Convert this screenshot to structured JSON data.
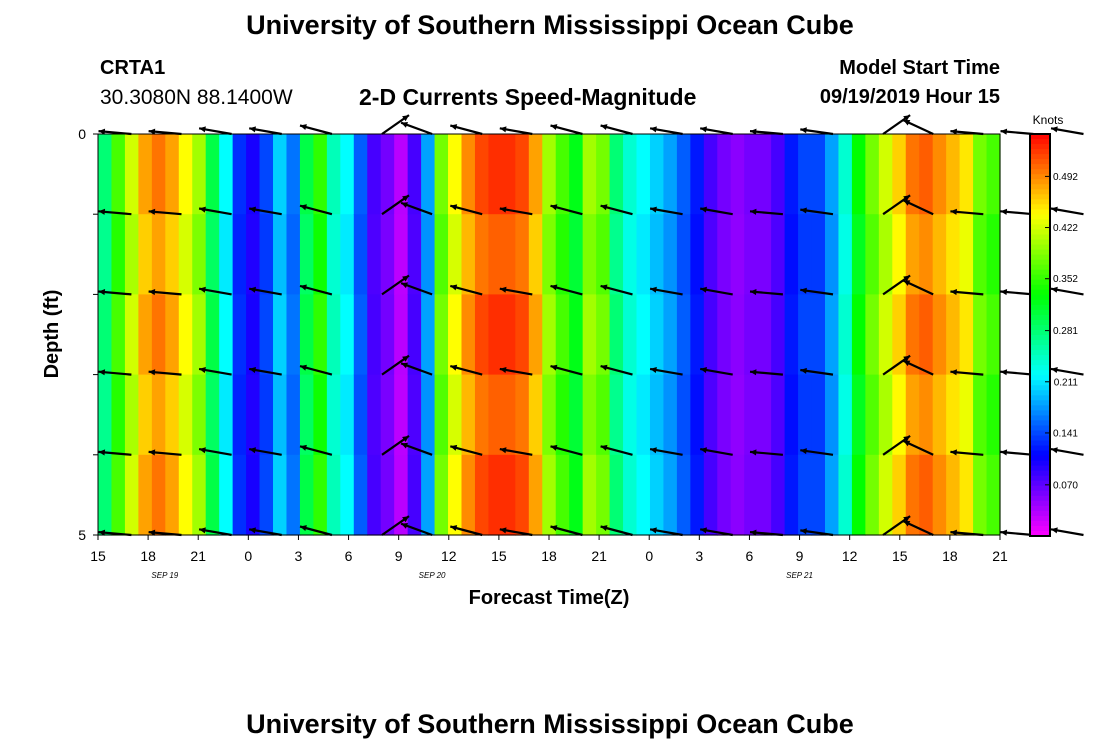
{
  "header": {
    "title": "University of Southern Mississippi Ocean Cube",
    "station": "CRTA1",
    "coords": "30.3080N 88.1400W",
    "chart_title": "2-D Currents Speed-Magnitude",
    "start_label": "Model Start Time",
    "start_value": "09/19/2019 Hour 15"
  },
  "footer": {
    "title": "University of Southern Mississippi Ocean Cube"
  },
  "chart_data": {
    "type": "heatmap",
    "title": "2-D Currents Speed-Magnitude",
    "xlabel": "Forecast Time(Z)",
    "ylabel": "Depth (ft)",
    "x_tick_labels": [
      "15",
      "18",
      "21",
      "0",
      "3",
      "6",
      "9",
      "12",
      "15",
      "18",
      "21",
      "0",
      "3",
      "6",
      "9",
      "12",
      "15",
      "18",
      "21"
    ],
    "date_labels": [
      {
        "label": "SEP 19",
        "hour_index": 4
      },
      {
        "label": "SEP 20",
        "hour_index": 20
      },
      {
        "label": "SEP 21",
        "hour_index": 42
      }
    ],
    "y_tick_labels": [
      "0",
      "5"
    ],
    "ylim": [
      0,
      5
    ],
    "x_start": "2019-09-19 15Z",
    "x_end": "2019-09-21 21Z",
    "colorbar": {
      "unit": "Knots",
      "range": [
        0.0,
        0.55
      ],
      "ticks": [
        "0.492",
        "0.422",
        "0.352",
        "0.281",
        "0.211",
        "0.141",
        "0.070"
      ]
    },
    "speed_knots_by_hour": [
      0.28,
      0.36,
      0.42,
      0.48,
      0.5,
      0.48,
      0.44,
      0.4,
      0.3,
      0.22,
      0.13,
      0.1,
      0.14,
      0.2,
      0.16,
      0.3,
      0.35,
      0.25,
      0.22,
      0.15,
      0.08,
      0.06,
      0.03,
      0.08,
      0.18,
      0.38,
      0.44,
      0.49,
      0.52,
      0.53,
      0.53,
      0.52,
      0.48,
      0.4,
      0.36,
      0.32,
      0.4,
      0.38,
      0.28,
      0.24,
      0.22,
      0.2,
      0.18,
      0.15,
      0.12,
      0.08,
      0.06,
      0.05,
      0.06,
      0.06,
      0.08,
      0.12,
      0.14,
      0.14,
      0.18,
      0.24,
      0.33,
      0.38,
      0.42,
      0.46,
      0.5,
      0.51,
      0.49,
      0.47,
      0.45,
      0.38,
      0.36
    ],
    "vector_times_hours": [
      2,
      5,
      8,
      11,
      14,
      17,
      20,
      23,
      26,
      29,
      32,
      35,
      38,
      41,
      44,
      47,
      50,
      53,
      56,
      59,
      62,
      65
    ],
    "vector_depths_ft": [
      0,
      1,
      2,
      3,
      4,
      5
    ],
    "vector_direction_deg": [
      275,
      275,
      280,
      280,
      285,
      55,
      290,
      285,
      280,
      285,
      285,
      280,
      280,
      275,
      278,
      55,
      295,
      275,
      275,
      280,
      280,
      285
    ]
  }
}
